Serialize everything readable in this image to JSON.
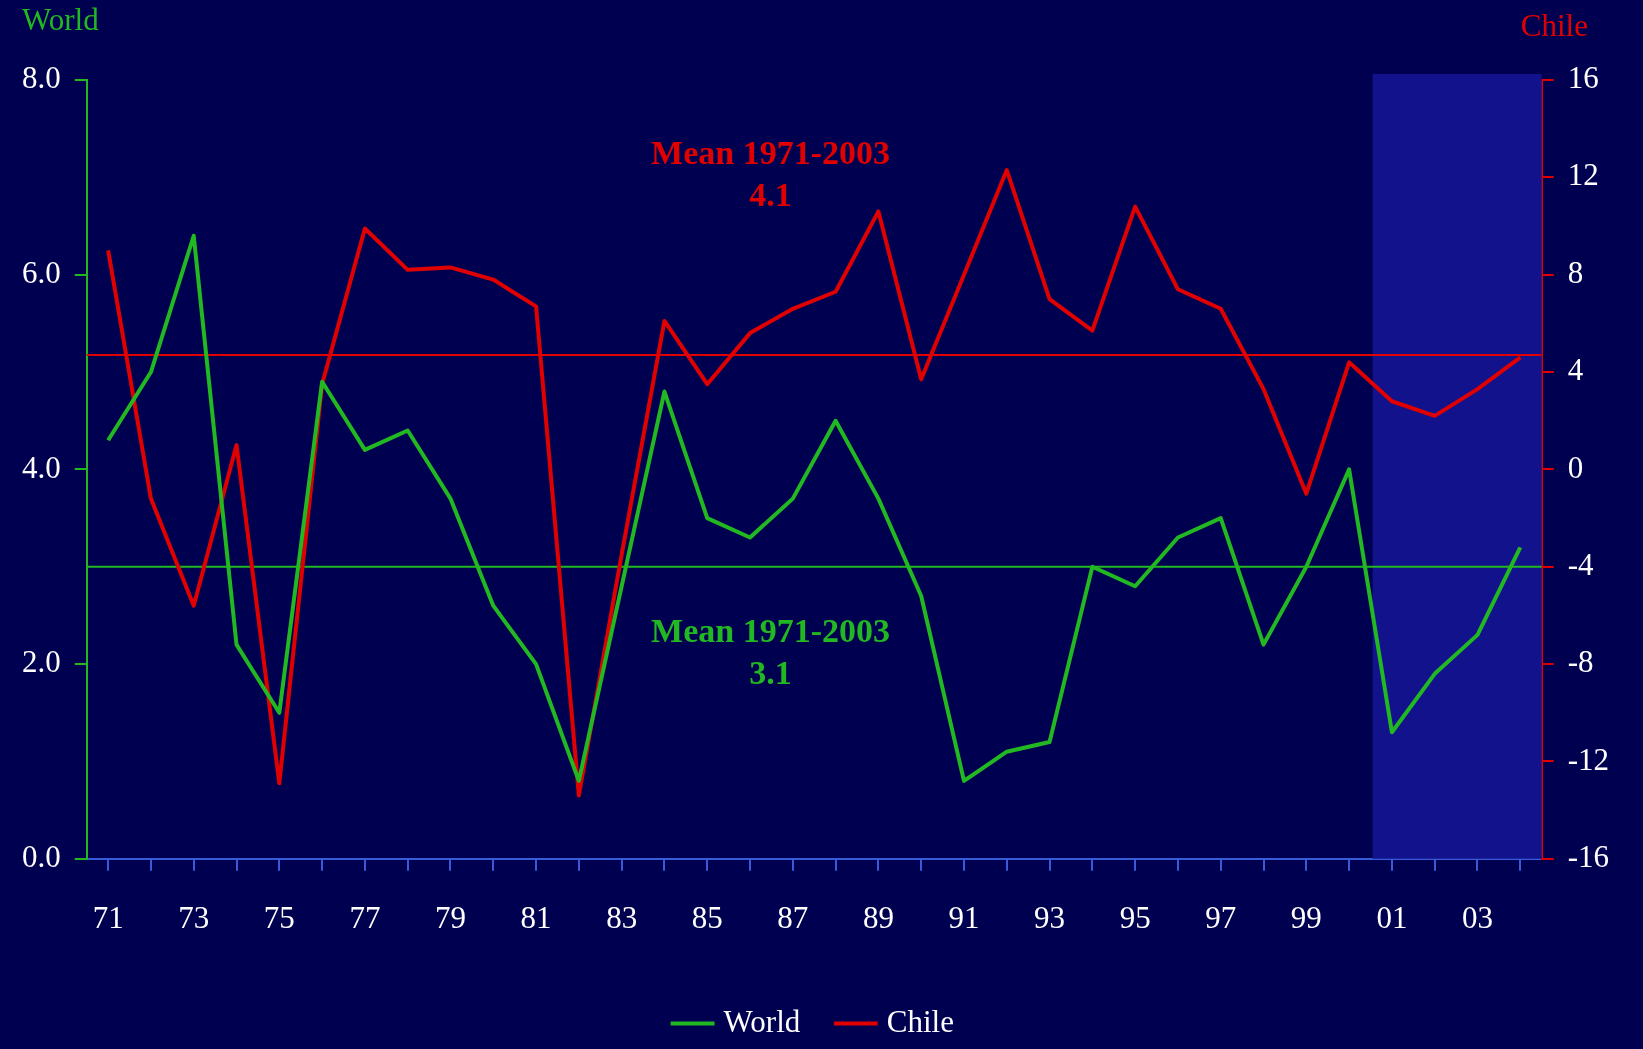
{
  "chart_data": {
    "type": "line",
    "ylabel": "World",
    "y2label": "Chile",
    "x": [
      1971,
      1972,
      1973,
      1974,
      1975,
      1976,
      1977,
      1978,
      1979,
      1980,
      1981,
      1982,
      1983,
      1984,
      1985,
      1986,
      1987,
      1988,
      1989,
      1990,
      1991,
      1992,
      1993,
      1994,
      1995,
      1996,
      1997,
      1998,
      1999,
      2000,
      2001,
      2002,
      2003,
      2004
    ],
    "series": [
      {
        "name": "World",
        "color": "#22b822",
        "values": [
          4.3,
          5.0,
          6.4,
          2.2,
          1.5,
          4.9,
          4.2,
          4.4,
          3.7,
          2.6,
          2.0,
          0.8,
          2.8,
          4.8,
          3.5,
          3.3,
          3.7,
          4.5,
          3.7,
          2.7,
          0.8,
          1.1,
          1.2,
          3.0,
          2.8,
          3.3,
          3.5,
          2.2,
          3.0,
          4.0,
          1.3,
          1.9,
          2.3,
          3.2
        ]
      },
      {
        "name": "Chile",
        "color": "#e00000",
        "axis": "y2",
        "values": [
          9.0,
          -1.2,
          -5.6,
          1.0,
          -12.9,
          3.5,
          9.9,
          8.2,
          8.3,
          7.8,
          6.7,
          -13.4,
          -3.5,
          6.1,
          3.5,
          5.6,
          6.6,
          7.3,
          10.6,
          3.7,
          8.0,
          12.3,
          7.0,
          5.7,
          10.8,
          7.4,
          6.6,
          3.3,
          -1.0,
          4.4,
          2.8,
          2.2,
          3.3,
          4.6
        ]
      }
    ],
    "xlim": [
      1970.5,
      2004.5
    ],
    "xticks": [
      {
        "value": 1971,
        "label": "71"
      },
      {
        "value": 1972,
        "label": null
      },
      {
        "value": 1973,
        "label": "73"
      },
      {
        "value": 1974,
        "label": null
      },
      {
        "value": 1975,
        "label": "75"
      },
      {
        "value": 1976,
        "label": null
      },
      {
        "value": 1977,
        "label": "77"
      },
      {
        "value": 1978,
        "label": null
      },
      {
        "value": 1979,
        "label": "79"
      },
      {
        "value": 1980,
        "label": null
      },
      {
        "value": 1981,
        "label": "81"
      },
      {
        "value": 1982,
        "label": null
      },
      {
        "value": 1983,
        "label": "83"
      },
      {
        "value": 1984,
        "label": null
      },
      {
        "value": 1985,
        "label": "85"
      },
      {
        "value": 1986,
        "label": null
      },
      {
        "value": 1987,
        "label": "87"
      },
      {
        "value": 1988,
        "label": null
      },
      {
        "value": 1989,
        "label": "89"
      },
      {
        "value": 1990,
        "label": null
      },
      {
        "value": 1991,
        "label": "91"
      },
      {
        "value": 1992,
        "label": null
      },
      {
        "value": 1993,
        "label": "93"
      },
      {
        "value": 1994,
        "label": null
      },
      {
        "value": 1995,
        "label": "95"
      },
      {
        "value": 1996,
        "label": null
      },
      {
        "value": 1997,
        "label": "97"
      },
      {
        "value": 1998,
        "label": null
      },
      {
        "value": 1999,
        "label": "99"
      },
      {
        "value": 2000,
        "label": null
      },
      {
        "value": 2001,
        "label": "01"
      },
      {
        "value": 2002,
        "label": null
      },
      {
        "value": 2003,
        "label": "03"
      },
      {
        "value": 2004,
        "label": null
      }
    ],
    "ylim": [
      0,
      8
    ],
    "yticks": [
      {
        "value": 0,
        "label": "0.0"
      },
      {
        "value": 2,
        "label": "2.0"
      },
      {
        "value": 4,
        "label": "4.0"
      },
      {
        "value": 6,
        "label": "6.0"
      },
      {
        "value": 8,
        "label": "8.0"
      }
    ],
    "y2lim": [
      -16,
      16
    ],
    "y2ticks": [
      -16,
      -12,
      -8,
      -4,
      0,
      4,
      8,
      12,
      16
    ],
    "ref_lines": [
      {
        "axis": "y",
        "value": 3.0,
        "label": "Mean 1971-2003\n3.1",
        "color": "#22b822"
      },
      {
        "axis": "y2",
        "value": 4.7,
        "label": "Mean 1971-2003\n4.1",
        "color": "#e00000"
      }
    ],
    "bands": [
      {
        "axis": "x",
        "from": 2000.55,
        "to": 2004.5,
        "color": "#12128c"
      }
    ],
    "legend": "bottom",
    "grid": false,
    "marker": "none",
    "line_style": "solid"
  }
}
